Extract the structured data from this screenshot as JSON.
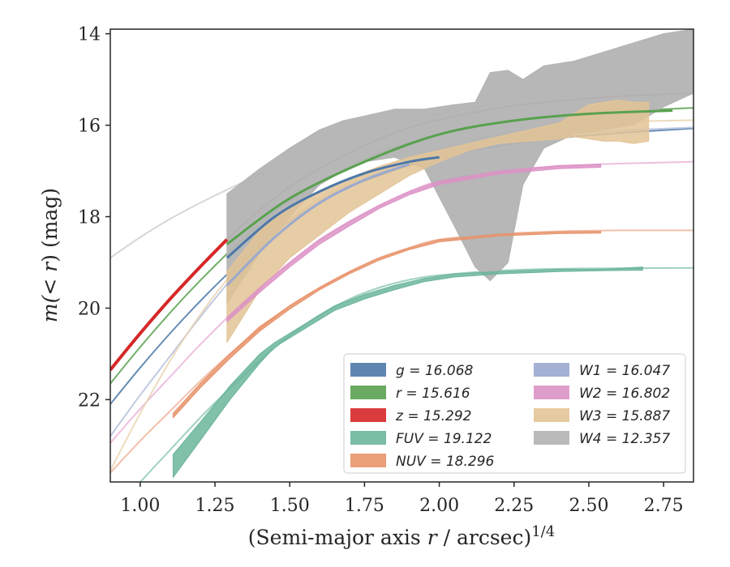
{
  "chart_data": {
    "type": "line",
    "xlabel_main": "(Semi-major axis ",
    "xlabel_var": "r",
    "xlabel_tail": " / arcsec)",
    "xlabel_sup": "1/4",
    "ylabel_pre": "m(",
    "ylabel_mid": "< r",
    "ylabel_post": ") (mag)",
    "xlim": [
      0.9,
      2.85
    ],
    "ylim": [
      23.8,
      13.9
    ],
    "inverted_y": true,
    "xticks": [
      1.0,
      1.25,
      1.5,
      1.75,
      2.0,
      2.25,
      2.5,
      2.75
    ],
    "xtick_labels": [
      "1.00",
      "1.25",
      "1.50",
      "1.75",
      "2.00",
      "2.25",
      "2.50",
      "2.75"
    ],
    "yticks": [
      14,
      16,
      18,
      20,
      22
    ],
    "ytick_labels": [
      "14",
      "16",
      "18",
      "20",
      "22"
    ],
    "legend_position": "lower-right",
    "series": [
      {
        "name": "g",
        "value": "16.068",
        "color": "#4c78a8",
        "fit_color": "#4c78a8",
        "fit": [
          [
            0.9,
            22.1
          ],
          [
            1.0,
            21.3
          ],
          [
            1.1,
            20.55
          ],
          [
            1.2,
            19.85
          ],
          [
            1.3,
            19.2
          ],
          [
            1.4,
            18.6
          ],
          [
            1.5,
            18.1
          ],
          [
            1.6,
            17.7
          ],
          [
            1.7,
            17.35
          ],
          [
            1.8,
            17.1
          ],
          [
            1.9,
            16.88
          ],
          [
            2.0,
            16.7
          ],
          [
            2.2,
            16.45
          ],
          [
            2.4,
            16.28
          ],
          [
            2.6,
            16.17
          ],
          [
            2.85,
            16.07
          ]
        ],
        "band_x": [
          1.29,
          1.45,
          1.6,
          1.75,
          1.9,
          2.0
        ],
        "band_lo": [
          18.9,
          18.0,
          17.45,
          17.05,
          16.8,
          16.7
        ],
        "band_hi": [
          18.9,
          18.0,
          17.45,
          17.05,
          16.8,
          16.7
        ],
        "band_width": 3
      },
      {
        "name": "r",
        "value": "15.616",
        "color": "#59a14f",
        "fit_color": "#59a14f",
        "fit": [
          [
            0.9,
            21.65
          ],
          [
            1.0,
            20.85
          ],
          [
            1.1,
            20.1
          ],
          [
            1.2,
            19.4
          ],
          [
            1.3,
            18.75
          ],
          [
            1.4,
            18.15
          ],
          [
            1.5,
            17.65
          ],
          [
            1.6,
            17.25
          ],
          [
            1.7,
            16.9
          ],
          [
            1.8,
            16.6
          ],
          [
            1.9,
            16.38
          ],
          [
            2.0,
            16.2
          ],
          [
            2.2,
            15.95
          ],
          [
            2.4,
            15.8
          ],
          [
            2.6,
            15.7
          ],
          [
            2.85,
            15.62
          ]
        ],
        "band_x": [
          1.29,
          1.5,
          1.75,
          2.0,
          2.25,
          2.5,
          2.78
        ],
        "band_lo": [
          18.6,
          17.6,
          16.8,
          16.2,
          15.9,
          15.75,
          15.68
        ],
        "band_hi": [
          18.6,
          17.6,
          16.8,
          16.2,
          15.9,
          15.75,
          15.68
        ],
        "band_width": 3
      },
      {
        "name": "z",
        "value": "15.292",
        "color": "#d62728",
        "fit_color": "#c44e52",
        "fit": [
          [
            0.9,
            21.35
          ],
          [
            1.0,
            20.55
          ],
          [
            1.1,
            19.8
          ],
          [
            1.2,
            19.1
          ],
          [
            1.3,
            18.45
          ],
          [
            1.4,
            17.85
          ],
          [
            1.5,
            17.35
          ],
          [
            1.6,
            16.95
          ],
          [
            1.7,
            16.6
          ],
          [
            1.8,
            16.3
          ],
          [
            1.9,
            16.05
          ],
          [
            2.0,
            15.88
          ],
          [
            2.2,
            15.62
          ],
          [
            2.4,
            15.47
          ],
          [
            2.6,
            15.37
          ],
          [
            2.85,
            15.3
          ]
        ],
        "band_x": [
          0.9,
          1.0,
          1.1,
          1.2,
          1.29
        ],
        "band_lo": [
          21.35,
          20.55,
          19.8,
          19.1,
          18.5
        ],
        "band_hi": [
          21.35,
          20.55,
          19.8,
          19.1,
          18.5
        ],
        "band_width": 4
      },
      {
        "name": "FUV",
        "value": "19.122",
        "color": "#6bb59a",
        "fit_color": "#8ec9b5",
        "fit": [
          [
            1.0,
            23.8
          ],
          [
            1.1,
            23.1
          ],
          [
            1.2,
            22.4
          ],
          [
            1.3,
            21.75
          ],
          [
            1.4,
            21.15
          ],
          [
            1.5,
            20.6
          ],
          [
            1.6,
            20.15
          ],
          [
            1.7,
            19.8
          ],
          [
            1.8,
            19.55
          ],
          [
            1.9,
            19.38
          ],
          [
            2.0,
            19.28
          ],
          [
            2.2,
            19.18
          ],
          [
            2.4,
            19.14
          ],
          [
            2.6,
            19.13
          ],
          [
            2.85,
            19.12
          ]
        ],
        "band_x": [
          1.11,
          1.2,
          1.3,
          1.4,
          1.45,
          1.55,
          1.65,
          1.75,
          1.85,
          1.95,
          2.05,
          2.2,
          2.4,
          2.55,
          2.68
        ],
        "band_lo": [
          23.2,
          22.5,
          21.7,
          21.0,
          20.75,
          20.35,
          19.95,
          19.7,
          19.5,
          19.35,
          19.25,
          19.2,
          19.15,
          19.15,
          19.1
        ],
        "band_hi": [
          23.7,
          22.9,
          22.0,
          21.2,
          20.85,
          20.45,
          20.05,
          19.8,
          19.6,
          19.42,
          19.32,
          19.25,
          19.2,
          19.18,
          19.17
        ],
        "band_width": 0
      },
      {
        "name": "NUV",
        "value": "18.296",
        "color": "#e8936b",
        "fit_color": "#f0b59b",
        "fit": [
          [
            0.9,
            23.6
          ],
          [
            1.0,
            22.9
          ],
          [
            1.1,
            22.25
          ],
          [
            1.2,
            21.6
          ],
          [
            1.3,
            21.0
          ],
          [
            1.4,
            20.45
          ],
          [
            1.5,
            19.95
          ],
          [
            1.6,
            19.55
          ],
          [
            1.7,
            19.2
          ],
          [
            1.8,
            18.9
          ],
          [
            1.9,
            18.68
          ],
          [
            2.0,
            18.5
          ],
          [
            2.2,
            18.38
          ],
          [
            2.4,
            18.32
          ],
          [
            2.6,
            18.3
          ],
          [
            2.85,
            18.3
          ]
        ],
        "band_x": [
          1.11,
          1.2,
          1.3,
          1.4,
          1.5,
          1.6,
          1.7,
          1.8,
          1.9,
          2.0,
          2.2,
          2.4,
          2.54
        ],
        "band_lo": [
          22.3,
          21.65,
          21.0,
          20.4,
          19.95,
          19.55,
          19.2,
          18.9,
          18.68,
          18.5,
          18.38,
          18.33,
          18.32
        ],
        "band_hi": [
          22.4,
          21.75,
          21.1,
          20.5,
          20.02,
          19.6,
          19.25,
          18.95,
          18.72,
          18.55,
          18.42,
          18.37,
          18.36
        ],
        "band_width": 0
      },
      {
        "name": "W1",
        "value": "16.047",
        "color": "#9aa9cf",
        "fit_color": "#b5c1dc",
        "fit": [
          [
            0.9,
            22.8
          ],
          [
            1.0,
            21.9
          ],
          [
            1.1,
            21.05
          ],
          [
            1.2,
            20.2
          ],
          [
            1.3,
            19.4
          ],
          [
            1.4,
            18.7
          ],
          [
            1.5,
            18.1
          ],
          [
            1.6,
            17.65
          ],
          [
            1.7,
            17.3
          ],
          [
            1.8,
            17.02
          ],
          [
            1.9,
            16.8
          ],
          [
            2.0,
            16.62
          ],
          [
            2.2,
            16.38
          ],
          [
            2.4,
            16.22
          ],
          [
            2.6,
            16.12
          ],
          [
            2.85,
            16.05
          ]
        ],
        "band_x": [
          1.29,
          1.45,
          1.6,
          1.75,
          1.9
        ],
        "band_lo": [
          19.5,
          18.45,
          17.7,
          17.2,
          16.85
        ],
        "band_hi": [
          19.5,
          18.45,
          17.7,
          17.2,
          16.85
        ],
        "band_width": 3
      },
      {
        "name": "W2",
        "value": "16.802",
        "color": "#dc92c6",
        "fit_color": "#eab5d9",
        "fit": [
          [
            0.9,
            22.95
          ],
          [
            1.0,
            22.2
          ],
          [
            1.1,
            21.5
          ],
          [
            1.2,
            20.8
          ],
          [
            1.3,
            20.15
          ],
          [
            1.4,
            19.55
          ],
          [
            1.5,
            19.0
          ],
          [
            1.6,
            18.5
          ],
          [
            1.7,
            18.1
          ],
          [
            1.8,
            17.75
          ],
          [
            1.9,
            17.45
          ],
          [
            2.0,
            17.22
          ],
          [
            2.2,
            17.0
          ],
          [
            2.4,
            16.9
          ],
          [
            2.6,
            16.84
          ],
          [
            2.85,
            16.8
          ]
        ],
        "band_x": [
          1.29,
          1.4,
          1.5,
          1.6,
          1.7,
          1.8,
          1.9,
          2.0,
          2.2,
          2.4,
          2.54
        ],
        "band_lo": [
          20.2,
          19.55,
          19.0,
          18.5,
          18.1,
          17.75,
          17.45,
          17.22,
          17.0,
          16.88,
          16.85
        ],
        "band_hi": [
          20.3,
          19.65,
          19.1,
          18.6,
          18.2,
          17.82,
          17.52,
          17.3,
          17.07,
          16.95,
          16.92
        ],
        "band_width": 0
      },
      {
        "name": "W3",
        "value": "15.887",
        "color": "#e3c497",
        "fit_color": "#ead5b3",
        "fit": [
          [
            0.9,
            23.55
          ],
          [
            1.0,
            22.3
          ],
          [
            1.1,
            21.15
          ],
          [
            1.2,
            20.15
          ],
          [
            1.3,
            19.3
          ],
          [
            1.4,
            18.6
          ],
          [
            1.5,
            18.05
          ],
          [
            1.6,
            17.6
          ],
          [
            1.7,
            17.25
          ],
          [
            1.8,
            16.95
          ],
          [
            1.9,
            16.7
          ],
          [
            2.0,
            16.5
          ],
          [
            2.2,
            16.2
          ],
          [
            2.4,
            16.03
          ],
          [
            2.6,
            15.93
          ],
          [
            2.85,
            15.89
          ]
        ],
        "band_x": [
          1.29,
          1.4,
          1.5,
          1.6,
          1.7,
          1.8,
          1.9,
          2.0,
          2.1,
          2.2,
          2.3,
          2.4,
          2.45,
          2.5,
          2.55,
          2.6,
          2.65,
          2.7
        ],
        "band_lo": [
          20.75,
          19.6,
          18.9,
          18.4,
          17.9,
          17.5,
          17.1,
          16.8,
          16.55,
          16.4,
          16.35,
          16.3,
          16.25,
          16.3,
          16.35,
          16.35,
          16.4,
          16.35
        ],
        "band_hi": [
          19.2,
          18.3,
          17.8,
          17.45,
          17.15,
          16.9,
          16.7,
          16.55,
          16.4,
          16.25,
          16.1,
          15.95,
          15.75,
          15.55,
          15.5,
          15.45,
          15.5,
          15.5
        ],
        "band_width": 0
      },
      {
        "name": "W4",
        "value": "12.357",
        "color": "#b3b3b3",
        "fit_color": "#d0d0d0",
        "fit": [
          [
            0.9,
            18.9
          ],
          [
            1.0,
            18.45
          ],
          [
            1.1,
            18.05
          ],
          [
            1.2,
            17.7
          ],
          [
            1.3,
            17.38
          ],
          [
            1.4,
            17.08
          ],
          [
            1.5,
            16.8
          ],
          [
            1.6,
            16.55
          ],
          [
            1.7,
            16.33
          ],
          [
            1.8,
            16.12
          ],
          [
            1.9,
            15.93
          ],
          [
            2.0,
            15.77
          ],
          [
            2.2,
            15.5
          ],
          [
            2.4,
            15.22
          ],
          [
            2.6,
            14.95
          ],
          [
            2.85,
            14.6
          ]
        ],
        "band_x": [
          1.29,
          1.4,
          1.5,
          1.6,
          1.68,
          1.75,
          1.85,
          1.95,
          2.05,
          2.12,
          2.17,
          2.23,
          2.28,
          2.35,
          2.45,
          2.55,
          2.65,
          2.75,
          2.85
        ],
        "band_lo": [
          19.9,
          18.8,
          18.0,
          17.3,
          17.0,
          16.8,
          16.7,
          16.95,
          18.2,
          19.1,
          19.4,
          19.0,
          17.3,
          16.5,
          16.2,
          16.1,
          16.0,
          15.6,
          15.3
        ],
        "band_hi": [
          17.5,
          16.95,
          16.5,
          16.1,
          15.9,
          15.8,
          15.65,
          15.65,
          15.55,
          15.5,
          14.85,
          14.8,
          15.0,
          14.7,
          14.6,
          14.4,
          14.2,
          14.0,
          13.9
        ],
        "band_width": 0
      }
    ]
  }
}
